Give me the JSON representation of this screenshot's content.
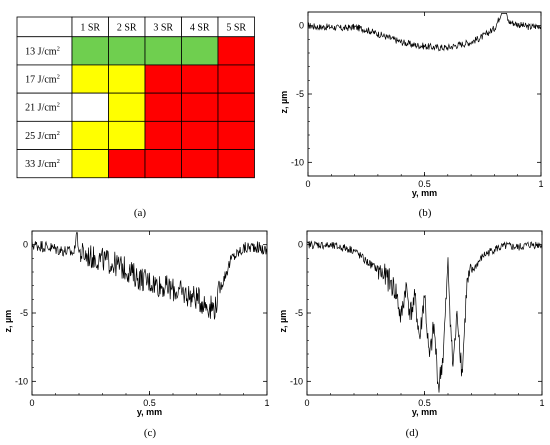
{
  "table": {
    "header": [
      "",
      "1 SR",
      "2 SR",
      "3 SR",
      "4 SR",
      "5 SR"
    ],
    "row_labels": [
      "13 J/cm",
      "17 J/cm",
      "21 J/cm",
      "25 J/cm",
      "33 J/cm"
    ],
    "unit_superscript": "2",
    "cells": [
      [
        "green",
        "green",
        "green",
        "green",
        "red"
      ],
      [
        "yellow",
        "yellow",
        "red",
        "red",
        "red"
      ],
      [
        "white",
        "yellow",
        "red",
        "red",
        "red"
      ],
      [
        "yellow",
        "yellow",
        "red",
        "red",
        "red"
      ],
      [
        "yellow",
        "red",
        "red",
        "red",
        "red"
      ]
    ],
    "colors": {
      "green": "#6fcf4f",
      "yellow": "#ffff00",
      "red": "#ff0000",
      "white": "#ffffff"
    }
  },
  "captions": [
    "(a)",
    "(b)",
    "(c)",
    "(d)"
  ],
  "chart_data": [
    {
      "type": "line",
      "id": "b",
      "xlabel": "y, mm",
      "ylabel": "z, µm",
      "xlim": [
        0,
        1
      ],
      "ylim": [
        -11,
        1
      ],
      "xticks": [
        "0",
        "0.5",
        "1"
      ],
      "yticks": [
        "0",
        "-5",
        "-10"
      ],
      "x": [
        0,
        0.05,
        0.1,
        0.15,
        0.2,
        0.25,
        0.3,
        0.35,
        0.4,
        0.45,
        0.5,
        0.55,
        0.6,
        0.65,
        0.7,
        0.75,
        0.8,
        0.82,
        0.84,
        0.86,
        0.9,
        0.95,
        1.0
      ],
      "y": [
        0,
        -0.1,
        -0.1,
        -0.2,
        -0.1,
        -0.3,
        -0.6,
        -0.9,
        -1.2,
        -1.4,
        -1.5,
        -1.6,
        -1.6,
        -1.4,
        -1.2,
        -0.8,
        -0.2,
        0.5,
        1.6,
        0.3,
        0.1,
        -0.1,
        0
      ]
    },
    {
      "type": "line",
      "id": "c",
      "xlabel": "y, mm",
      "ylabel": "z, µm",
      "xlim": [
        0,
        1
      ],
      "ylim": [
        -11,
        1
      ],
      "xticks": [
        "0",
        "0.5",
        "1"
      ],
      "yticks": [
        "0",
        "-5",
        "-10"
      ],
      "x": [
        0,
        0.05,
        0.1,
        0.15,
        0.18,
        0.19,
        0.2,
        0.25,
        0.3,
        0.35,
        0.4,
        0.45,
        0.5,
        0.55,
        0.6,
        0.65,
        0.7,
        0.75,
        0.78,
        0.8,
        0.85,
        0.9,
        0.95,
        1.0
      ],
      "y": [
        0,
        -0.1,
        -0.3,
        -0.5,
        -0.6,
        1.3,
        -0.6,
        -0.9,
        -1.1,
        -1.4,
        -1.8,
        -2.4,
        -2.7,
        -3.0,
        -3.3,
        -3.6,
        -3.9,
        -4.5,
        -4.6,
        -3.2,
        -1.0,
        -0.3,
        -0.1,
        -0.5
      ]
    },
    {
      "type": "line",
      "id": "d",
      "xlabel": "y, mm",
      "ylabel": "z, µm",
      "xlim": [
        0,
        1
      ],
      "ylim": [
        -11,
        1
      ],
      "xticks": [
        "0",
        "0.5",
        "1"
      ],
      "yticks": [
        "0",
        "-5",
        "-10"
      ],
      "x": [
        0,
        0.05,
        0.1,
        0.15,
        0.2,
        0.25,
        0.3,
        0.35,
        0.38,
        0.4,
        0.42,
        0.44,
        0.46,
        0.48,
        0.5,
        0.52,
        0.54,
        0.56,
        0.58,
        0.6,
        0.62,
        0.64,
        0.66,
        0.68,
        0.7,
        0.75,
        0.8,
        0.85,
        0.9,
        0.95,
        1.0
      ],
      "y": [
        0,
        0,
        -0.1,
        -0.2,
        -0.4,
        -1.2,
        -1.8,
        -2.6,
        -3.5,
        -5.5,
        -3.0,
        -5.0,
        -4.0,
        -7.0,
        -3.5,
        -8.5,
        -6.0,
        -10.5,
        -8.0,
        -1.5,
        -9.0,
        -5.0,
        -9.5,
        -3.0,
        -2.0,
        -0.8,
        -0.3,
        -0.1,
        -0.2,
        0,
        0
      ]
    }
  ]
}
